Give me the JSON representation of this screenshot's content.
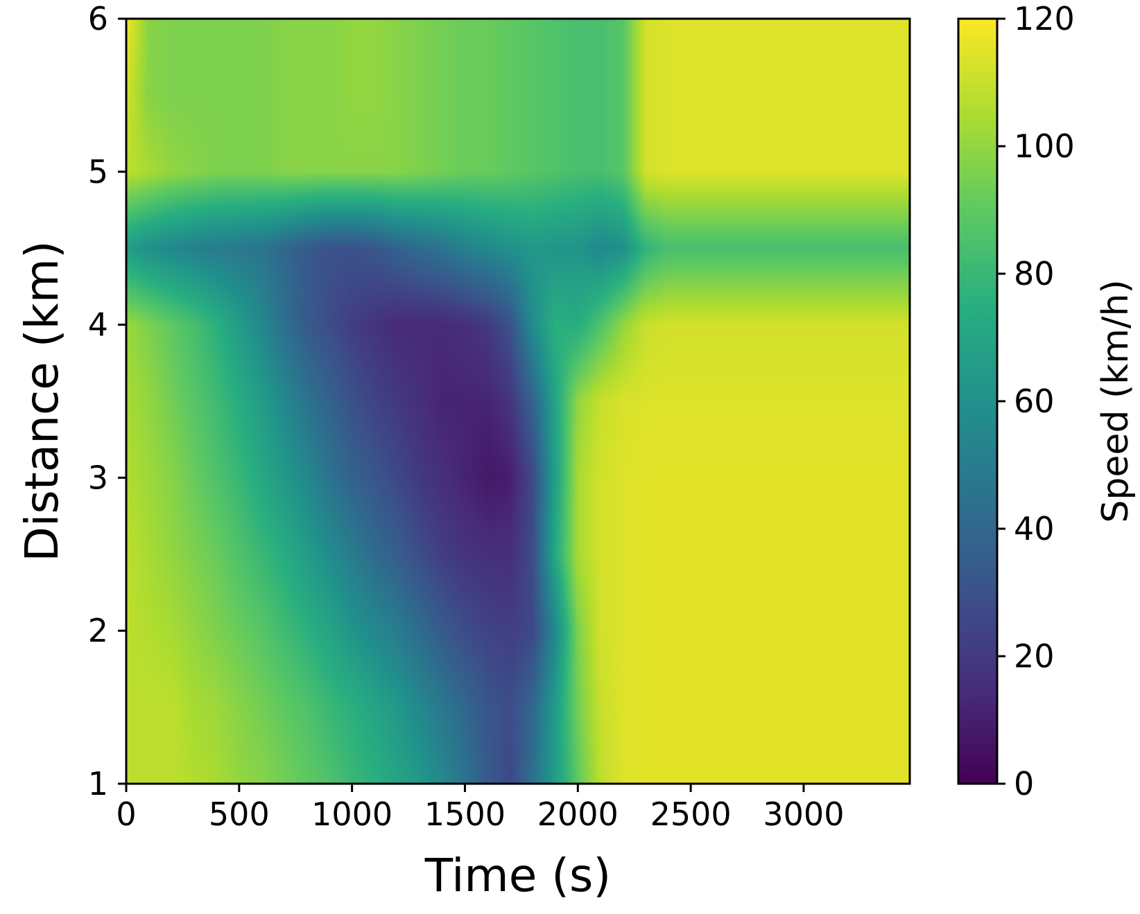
{
  "chart_data": {
    "type": "heatmap",
    "title": "",
    "xlabel": "Time (s)",
    "ylabel": "Distance (km)",
    "xlim": [
      0,
      3470
    ],
    "ylim": [
      1,
      6
    ],
    "x_ticks": [
      "0",
      "500",
      "1000",
      "1500",
      "2000",
      "2500",
      "3000"
    ],
    "y_ticks": [
      "1",
      "2",
      "3",
      "4",
      "5",
      "6"
    ],
    "colorbar": {
      "label": "Speed (km/h)",
      "range": [
        0,
        120
      ],
      "ticks": [
        "0",
        "20",
        "40",
        "60",
        "80",
        "100",
        "120"
      ],
      "colormap": "viridis"
    },
    "grid": false,
    "time_samples_s": [
      0,
      100,
      200,
      300,
      400,
      500,
      600,
      700,
      800,
      900,
      1000,
      1100,
      1200,
      1300,
      1400,
      1500,
      1600,
      1700,
      1800,
      1900,
      2000,
      2100,
      2200,
      2300,
      2400,
      2500,
      2600,
      2700,
      2800,
      2900,
      3000,
      3100,
      3200,
      3300,
      3400
    ],
    "distance_samples_km": [
      1.0,
      1.5,
      2.0,
      2.5,
      3.0,
      3.5,
      4.0,
      4.5,
      5.0,
      5.5,
      6.0
    ],
    "speed_kmh": [
      [
        108,
        108,
        108,
        106,
        104,
        100,
        98,
        94,
        90,
        86,
        80,
        76,
        70,
        64,
        56,
        46,
        34,
        26,
        44,
        66,
        90,
        108,
        114,
        115,
        115,
        115,
        115,
        115,
        115,
        115,
        115,
        115,
        115,
        115,
        115
      ],
      [
        108,
        108,
        108,
        104,
        102,
        98,
        94,
        90,
        86,
        80,
        76,
        70,
        64,
        56,
        48,
        40,
        32,
        28,
        40,
        66,
        94,
        110,
        114,
        115,
        115,
        115,
        115,
        115,
        115,
        115,
        115,
        115,
        115,
        115,
        115
      ],
      [
        108,
        106,
        104,
        100,
        96,
        92,
        88,
        82,
        76,
        70,
        62,
        56,
        50,
        42,
        34,
        28,
        24,
        22,
        26,
        56,
        96,
        112,
        114,
        115,
        115,
        115,
        115,
        115,
        115,
        115,
        115,
        115,
        115,
        115,
        115
      ],
      [
        108,
        104,
        100,
        96,
        92,
        86,
        80,
        74,
        66,
        58,
        50,
        42,
        36,
        28,
        22,
        18,
        16,
        16,
        28,
        72,
        104,
        112,
        114,
        115,
        115,
        115,
        115,
        115,
        115,
        115,
        115,
        115,
        115,
        115,
        115
      ],
      [
        106,
        102,
        98,
        92,
        86,
        80,
        72,
        64,
        56,
        46,
        38,
        32,
        26,
        20,
        16,
        12,
        8,
        10,
        26,
        68,
        104,
        112,
        114,
        115,
        115,
        115,
        115,
        115,
        115,
        115,
        115,
        115,
        115,
        115,
        115
      ],
      [
        104,
        100,
        94,
        88,
        82,
        74,
        66,
        56,
        46,
        38,
        30,
        24,
        20,
        16,
        12,
        12,
        12,
        18,
        38,
        70,
        100,
        110,
        113,
        114,
        114,
        114,
        114,
        114,
        114,
        114,
        114,
        114,
        114,
        114,
        114
      ],
      [
        102,
        96,
        90,
        84,
        76,
        66,
        56,
        44,
        34,
        28,
        22,
        18,
        14,
        14,
        14,
        16,
        20,
        30,
        58,
        76,
        74,
        86,
        100,
        110,
        112,
        112,
        112,
        112,
        112,
        112,
        112,
        112,
        112,
        112,
        112
      ],
      [
        66,
        60,
        56,
        52,
        50,
        48,
        46,
        40,
        34,
        30,
        30,
        32,
        38,
        42,
        46,
        52,
        56,
        60,
        64,
        62,
        62,
        56,
        60,
        78,
        84,
        84,
        84,
        84,
        84,
        84,
        84,
        84,
        84,
        84,
        84
      ],
      [
        108,
        104,
        100,
        98,
        96,
        96,
        96,
        98,
        98,
        98,
        98,
        98,
        98,
        96,
        94,
        92,
        92,
        90,
        88,
        86,
        84,
        84,
        88,
        112,
        114,
        114,
        114,
        114,
        114,
        114,
        114,
        114,
        114,
        114,
        114
      ],
      [
        112,
        98,
        96,
        96,
        96,
        96,
        96,
        98,
        98,
        98,
        100,
        100,
        98,
        96,
        94,
        92,
        92,
        90,
        88,
        86,
        84,
        84,
        88,
        112,
        114,
        114,
        114,
        114,
        114,
        114,
        114,
        114,
        114,
        114,
        114
      ],
      [
        118,
        98,
        96,
        96,
        96,
        96,
        96,
        98,
        98,
        98,
        100,
        100,
        98,
        96,
        94,
        92,
        92,
        90,
        88,
        86,
        84,
        84,
        88,
        112,
        114,
        114,
        114,
        114,
        114,
        114,
        114,
        114,
        114,
        114,
        114
      ]
    ]
  }
}
